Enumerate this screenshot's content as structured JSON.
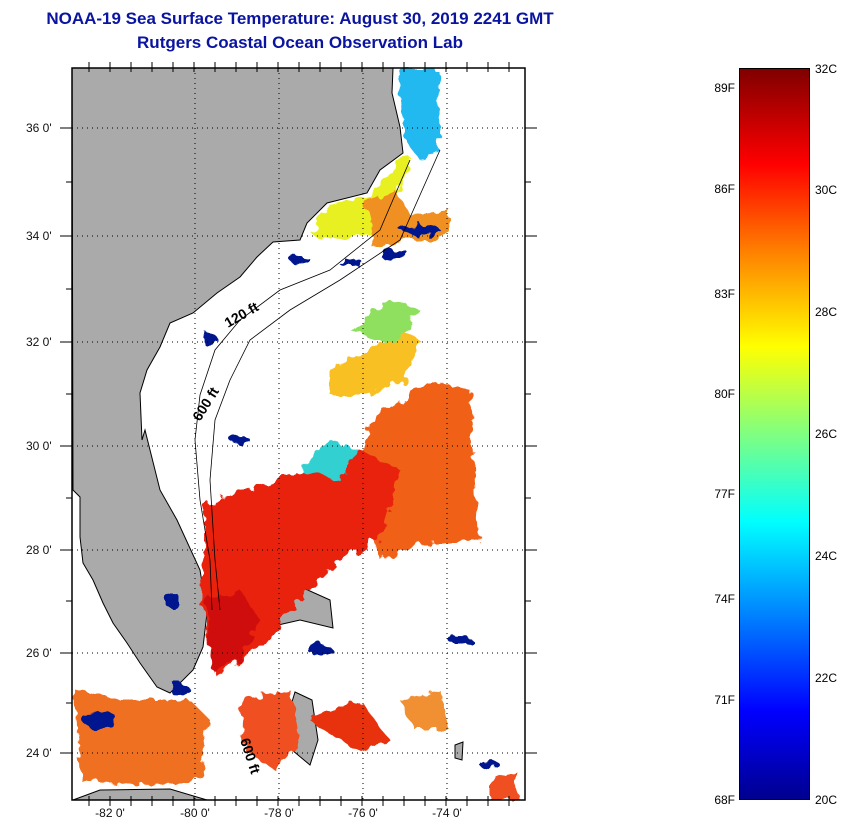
{
  "title": {
    "line1": "NOAA-19 Sea Surface Temperature:  August 30, 2019 2241 GMT",
    "line2": "Rutgers Coastal Ocean Observation Lab"
  },
  "map": {
    "lat_labels": [
      "36 0'",
      "34 0'",
      "32 0'",
      "30 0'",
      "28 0'",
      "26 0'",
      "24 0'"
    ],
    "lon_labels": [
      "-82 0'",
      "-80 0'",
      "-78 0'",
      "-76 0'",
      "-74 0'"
    ],
    "contour_labels": [
      "120 ft",
      "600 ft",
      "600 ft"
    ],
    "colors": {
      "land": "#aaaaaa",
      "ocean_nodata": "#ffffff"
    }
  },
  "colorbar": {
    "fahrenheit_labels": [
      "89F",
      "86F",
      "83F",
      "80F",
      "77F",
      "74F",
      "71F",
      "68F"
    ],
    "celsius_labels": [
      "32C",
      "30C",
      "28C",
      "26C",
      "24C",
      "22C",
      "20C"
    ],
    "range_c": [
      20,
      32
    ],
    "range_f": [
      68,
      89.6
    ]
  }
}
